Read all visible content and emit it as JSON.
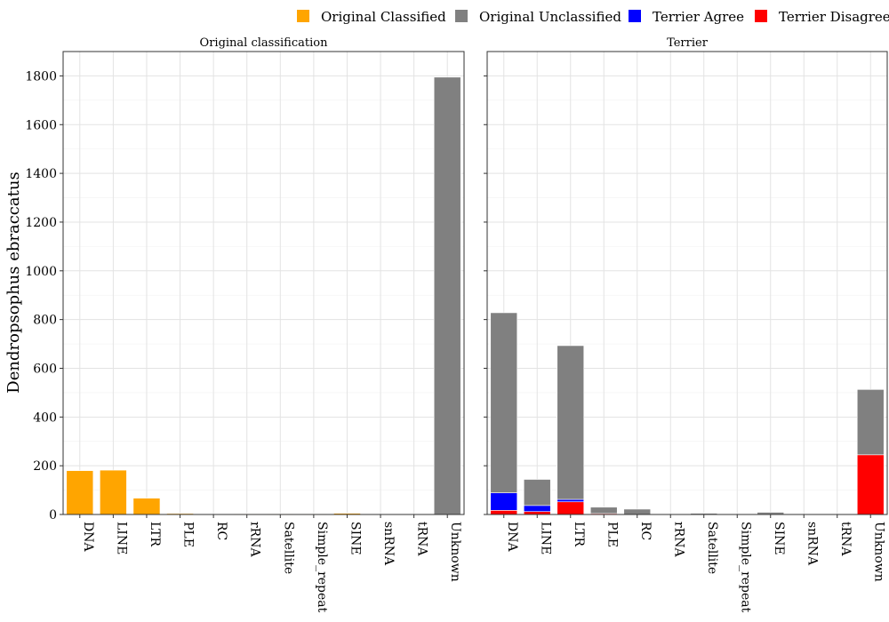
{
  "chart_data": {
    "type": "bar",
    "stacked": true,
    "ylabel": "Dendropsophus ebraccatus",
    "ylim": [
      0,
      1900
    ],
    "yticks": [
      0,
      200,
      400,
      600,
      800,
      1000,
      1200,
      1400,
      1600,
      1800
    ],
    "grid": true,
    "legend_position": "top-right",
    "categories": [
      "DNA",
      "LINE",
      "LTR",
      "PLE",
      "RC",
      "rRNA",
      "Satellite",
      "Simple_repeat",
      "SINE",
      "snRNA",
      "tRNA",
      "Unknown"
    ],
    "legend": [
      {
        "name": "Original Classified",
        "color": "#FFA500"
      },
      {
        "name": "Original Unclassified",
        "color": "#808080"
      },
      {
        "name": "Terrier Agree",
        "color": "#0000FF"
      },
      {
        "name": "Terrier Disagree",
        "color": "#FF0000"
      }
    ],
    "panels": [
      {
        "title": "Original classification",
        "series": [
          {
            "name": "Original Classified",
            "color": "#FFA500",
            "values": [
              180,
              182,
              67,
              4,
              0,
              3,
              3,
              3,
              5,
              0,
              0,
              0
            ]
          },
          {
            "name": "Original Unclassified",
            "color": "#808080",
            "values": [
              0,
              0,
              0,
              0,
              0,
              0,
              0,
              0,
              0,
              0,
              0,
              1795
            ]
          }
        ]
      },
      {
        "title": "Terrier",
        "series": [
          {
            "name": "Terrier Disagree",
            "color": "#FF0000",
            "values": [
              17,
              12,
              52,
              4,
              0,
              0,
              1,
              0,
              1,
              0,
              0,
              245
            ]
          },
          {
            "name": "Terrier Agree",
            "color": "#0000FF",
            "values": [
              72,
              25,
              10,
              0,
              0,
              0,
              0,
              0,
              0,
              0,
              0,
              0
            ]
          },
          {
            "name": "Original Unclassified",
            "color": "#808080",
            "values": [
              739,
              107,
              631,
              26,
              22,
              0,
              4,
              0,
              8,
              0,
              0,
              268
            ]
          }
        ]
      }
    ]
  }
}
